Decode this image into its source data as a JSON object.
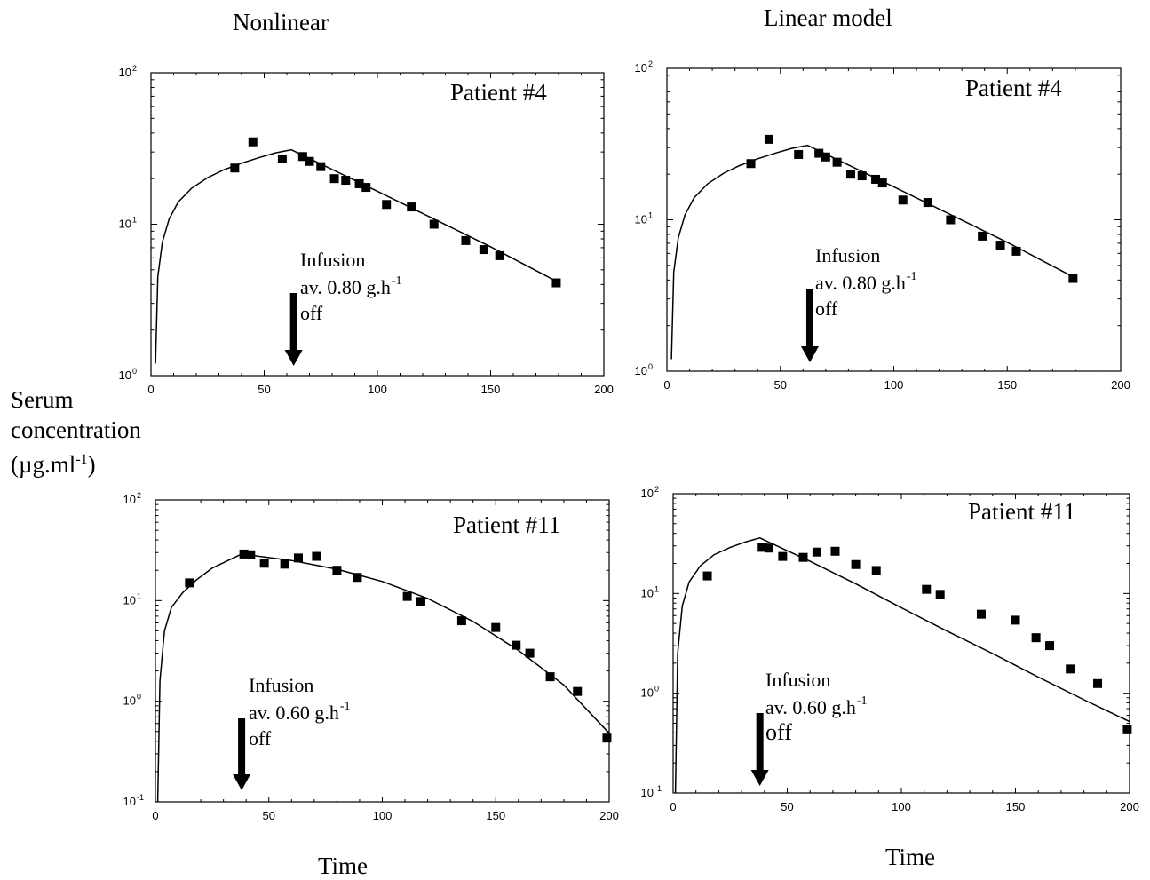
{
  "figure": {
    "col_titles": [
      "Nonlinear",
      "Linear model"
    ],
    "ylabel_lines": [
      "Serum",
      "concentration"
    ],
    "ylabel_unit_prefix": "(µg.ml",
    "ylabel_unit_exp": "-1",
    "ylabel_unit_suffix": ")",
    "xlabel": "Time",
    "annotation_word": "Infusion",
    "annotation_off": "off"
  },
  "chart_data": [
    {
      "id": "nonlinear-patient-4",
      "type": "scatter",
      "title": "Patient #4",
      "annotation_rate": "av. 0.80 g.h",
      "annotation_exp": "-1",
      "infusion_off_time": 63,
      "xlim": [
        0,
        200
      ],
      "ylim": [
        1,
        100
      ],
      "yscale": "log",
      "xticks": [
        0,
        50,
        100,
        150,
        200
      ],
      "yticks_exp": [
        "0",
        "1",
        "2"
      ],
      "observed": {
        "x": [
          37,
          45,
          58,
          67,
          70,
          75,
          81,
          86,
          92,
          95,
          104,
          115,
          125,
          139,
          147,
          154,
          179
        ],
        "y": [
          23.5,
          35,
          27,
          28,
          26,
          24,
          20,
          19.5,
          18.5,
          17.5,
          13.5,
          13,
          10,
          7.8,
          6.8,
          6.2,
          4.1
        ]
      },
      "fitted": {
        "x": [
          2,
          3,
          5,
          8,
          12,
          18,
          25,
          32,
          40,
          48,
          55,
          62,
          100,
          150,
          179
        ],
        "y": [
          1.2,
          4.5,
          7.6,
          10.8,
          14,
          17.3,
          20.3,
          22.8,
          25.3,
          27.6,
          29.6,
          31,
          16.5,
          7.1,
          4.2
        ]
      }
    },
    {
      "id": "linear-patient-4",
      "type": "scatter",
      "title": "Patient #4",
      "annotation_rate": "av. 0.80 g.h",
      "annotation_exp": "-1",
      "infusion_off_time": 63,
      "xlim": [
        0,
        200
      ],
      "ylim": [
        1,
        100
      ],
      "yscale": "log",
      "xticks": [
        0,
        50,
        100,
        150,
        200
      ],
      "yticks_exp": [
        "0",
        "1",
        "2"
      ],
      "observed": {
        "x": [
          37,
          45,
          58,
          67,
          70,
          75,
          81,
          86,
          92,
          95,
          104,
          115,
          125,
          139,
          147,
          154,
          179
        ],
        "y": [
          23.5,
          34,
          27,
          27.5,
          26,
          24,
          20,
          19.5,
          18.5,
          17.5,
          13.5,
          13,
          10,
          7.8,
          6.8,
          6.2,
          4.1
        ]
      },
      "fitted": {
        "x": [
          2,
          3,
          5,
          8,
          12,
          18,
          25,
          32,
          40,
          48,
          55,
          62,
          100,
          150,
          179
        ],
        "y": [
          1.2,
          4.5,
          7.6,
          10.8,
          14,
          17.3,
          20.3,
          22.8,
          25.3,
          27.6,
          29.6,
          31,
          16.5,
          7.1,
          4.2
        ]
      }
    },
    {
      "id": "nonlinear-patient-11",
      "type": "scatter",
      "title": "Patient #11",
      "annotation_rate": "av. 0.60 g.h",
      "annotation_exp": "-1",
      "infusion_off_time": 38,
      "xlim": [
        0,
        200
      ],
      "ylim": [
        0.1,
        100
      ],
      "yscale": "log",
      "xticks": [
        0,
        50,
        100,
        150,
        200
      ],
      "yticks_exp": [
        "-1",
        "0",
        "1",
        "2"
      ],
      "observed": {
        "x": [
          15,
          39,
          42,
          48,
          57,
          63,
          71,
          80,
          89,
          111,
          117,
          135,
          150,
          159,
          165,
          174,
          186,
          199
        ],
        "y": [
          15,
          29,
          28.5,
          23.5,
          23,
          26.5,
          27.5,
          20,
          17,
          11,
          9.8,
          6.3,
          5.4,
          3.6,
          3,
          1.75,
          1.25,
          0.43
        ]
      },
      "fitted": {
        "x": [
          1,
          2,
          4,
          7,
          12,
          18,
          25,
          32,
          38,
          60,
          80,
          100,
          120,
          140,
          160,
          180,
          200
        ],
        "y": [
          0.1,
          1.6,
          5,
          8.5,
          12,
          16,
          21,
          25,
          29,
          25,
          20.5,
          15.5,
          10.5,
          6.2,
          3.2,
          1.45,
          0.48
        ]
      }
    },
    {
      "id": "linear-patient-11",
      "type": "scatter",
      "title": "Patient #11",
      "annotation_rate": "av. 0.60 g.h",
      "annotation_exp": "-1",
      "infusion_off_time": 38,
      "xlim": [
        0,
        200
      ],
      "ylim": [
        0.1,
        100
      ],
      "yscale": "log",
      "xticks": [
        0,
        50,
        100,
        150,
        200
      ],
      "yticks_exp": [
        "-1",
        "0",
        "1",
        "2"
      ],
      "observed": {
        "x": [
          15,
          39,
          42,
          48,
          57,
          63,
          71,
          80,
          89,
          111,
          117,
          135,
          150,
          159,
          165,
          174,
          186,
          199
        ],
        "y": [
          15,
          29,
          28.5,
          23.5,
          23,
          26,
          26.5,
          19.5,
          17,
          11,
          9.8,
          6.2,
          5.4,
          3.6,
          3,
          1.75,
          1.25,
          0.43
        ]
      },
      "fitted": {
        "x": [
          1,
          2,
          4,
          7,
          12,
          18,
          25,
          32,
          38,
          60,
          80,
          100,
          120,
          140,
          160,
          180,
          200
        ],
        "y": [
          0.1,
          2.5,
          7.5,
          13,
          19,
          24.5,
          29,
          33,
          36,
          21,
          12.5,
          7.2,
          4.2,
          2.5,
          1.45,
          0.86,
          0.52
        ]
      }
    }
  ]
}
